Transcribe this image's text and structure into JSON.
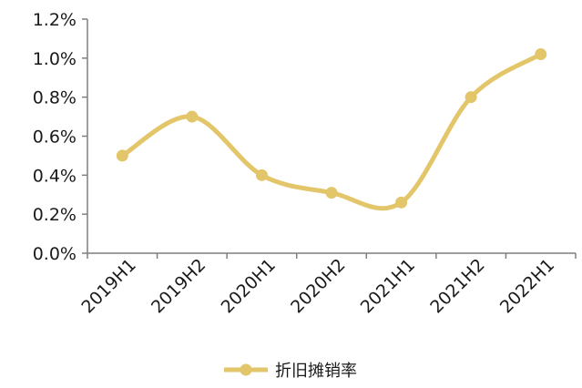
{
  "chart_data": {
    "type": "line",
    "categories": [
      "2019H1",
      "2019H2",
      "2020H1",
      "2020H2",
      "2021H1",
      "2021H2",
      "2022H1"
    ],
    "series": [
      {
        "name": "折旧摊销率",
        "values": [
          0.5,
          0.7,
          0.4,
          0.31,
          0.26,
          0.8,
          1.02
        ]
      }
    ],
    "y_ticks": [
      "0.0%",
      "0.2%",
      "0.4%",
      "0.6%",
      "0.8%",
      "1.0%",
      "1.2%"
    ],
    "ylim": [
      0,
      1.2
    ],
    "y_step": 0.2,
    "smooth": true,
    "grid": false,
    "legend_position": "bottom-center",
    "colors": {
      "series": "#e3c56a",
      "axis": "#7f7f7f",
      "text": "#1a1a1a"
    }
  }
}
